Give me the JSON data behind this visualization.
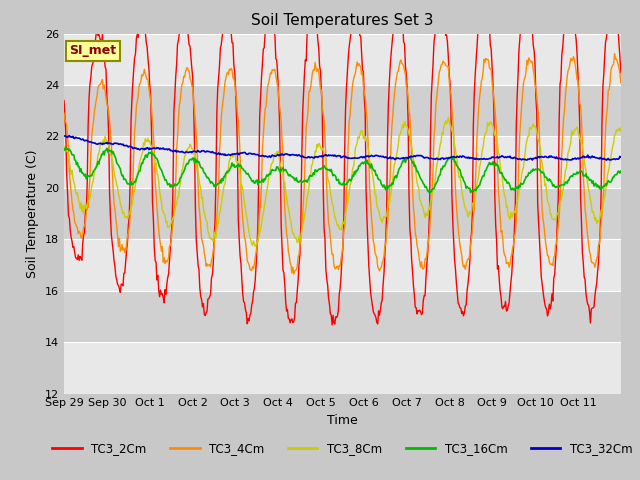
{
  "title": "Soil Temperatures Set 3",
  "xlabel": "Time",
  "ylabel": "Soil Temperature (C)",
  "ylim": [
    12,
    26
  ],
  "x_tick_labels": [
    "Sep 29",
    "Sep 30",
    "Oct 1",
    "Oct 2",
    "Oct 3",
    "Oct 4",
    "Oct 5",
    "Oct 6",
    "Oct 7",
    "Oct 8",
    "Oct 9",
    "Oct 10",
    "Oct 11"
  ],
  "annotation_text": "SI_met",
  "annotation_color": "#8B0000",
  "annotation_bg": "#FFFF99",
  "annotation_border": "#8B8B00",
  "series_colors": {
    "TC3_2Cm": "#FF0000",
    "TC3_4Cm": "#FF8C00",
    "TC3_8Cm": "#CCCC00",
    "TC3_16Cm": "#00BB00",
    "TC3_32Cm": "#0000CC"
  },
  "fig_bg": "#C8C8C8",
  "plot_bg_light": "#E8E8E8",
  "plot_bg_dark": "#D0D0D0",
  "grid_color": "#FFFFFF",
  "title_fontsize": 11,
  "label_fontsize": 9,
  "tick_fontsize": 8
}
